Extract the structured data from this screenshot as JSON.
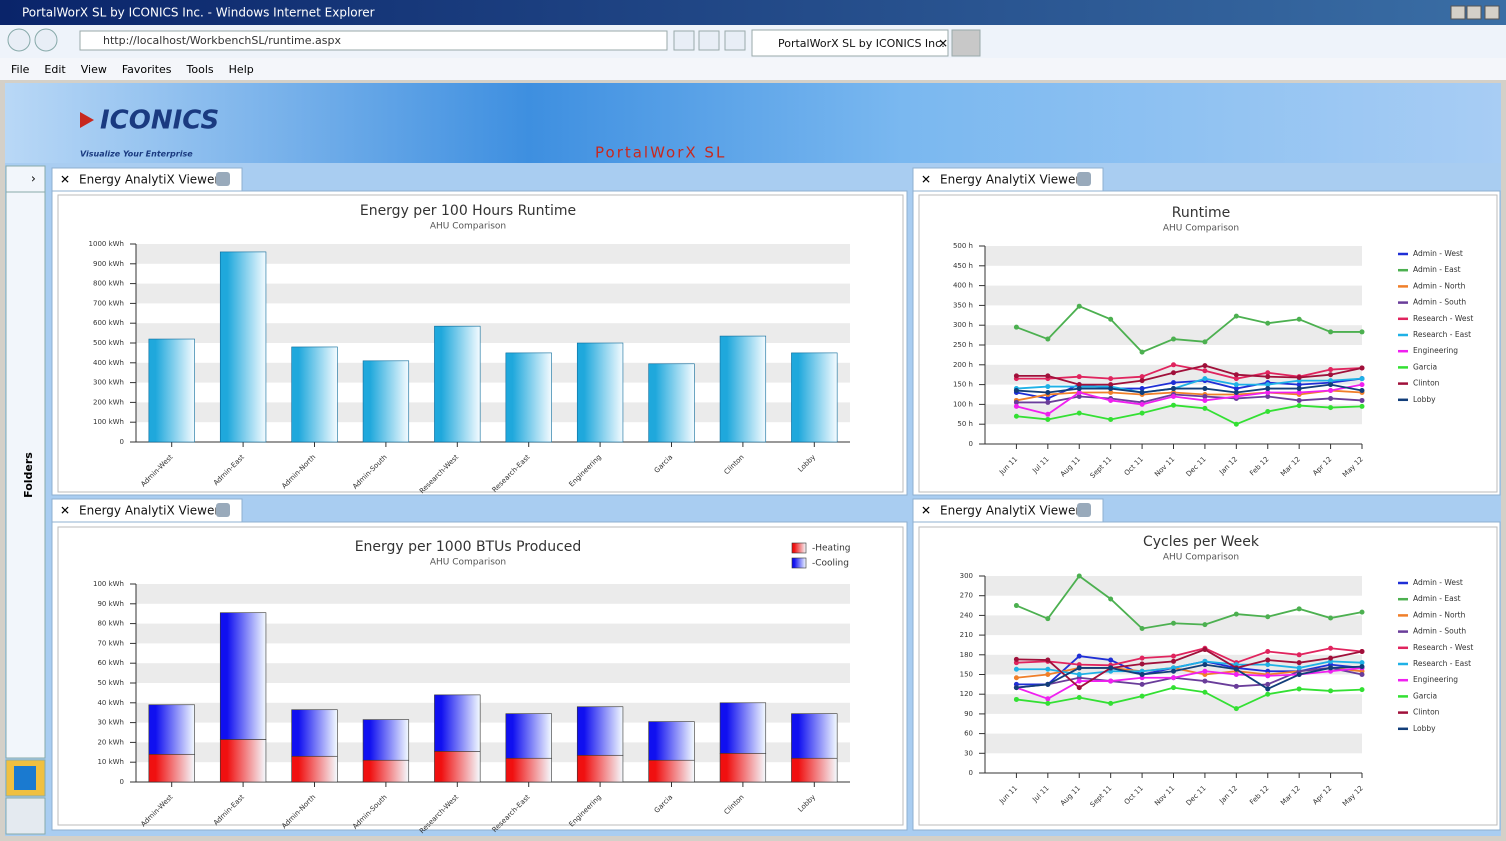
{
  "window": {
    "title": "PortalWorX SL by ICONICS Inc. - Windows Internet Explorer",
    "url": "http://localhost/WorkbenchSL/runtime.aspx",
    "tab": "PortalWorX SL by ICONICS Inc.",
    "menu": [
      "File",
      "Edit",
      "View",
      "Favorites",
      "Tools",
      "Help"
    ]
  },
  "banner": {
    "logo": "ICONICS",
    "tagline": "Visualize Your Enterprise",
    "product": "PortalWorX SL"
  },
  "sidebar": {
    "label": "Folders"
  },
  "panels": [
    "Energy AnalytiX Viewer",
    "Energy AnalytiX Viewer",
    "Energy AnalytiX Viewer",
    "Energy AnalytiX Viewer"
  ],
  "chart_data": [
    {
      "type": "bar",
      "title": "Energy per 100 Hours Runtime",
      "subtitle": "AHU Comparison",
      "categories": [
        "Admin-West",
        "Admin-East",
        "Admin-North",
        "Admin-South",
        "Research-West",
        "Research-East",
        "Engineering",
        "Garcia",
        "Clinton",
        "Lobby"
      ],
      "values": [
        520,
        960,
        480,
        410,
        585,
        450,
        500,
        395,
        535,
        450
      ],
      "color": "#1fa8dc",
      "ylim": [
        0,
        1000
      ],
      "grid": "bands",
      "yticks": [
        0,
        {
          "value": 100,
          "label": "100 kWh"
        },
        {
          "value": 200,
          "label": "200 kWh"
        },
        {
          "value": 300,
          "label": "300 kWh"
        },
        {
          "value": 400,
          "label": "400 kWh"
        },
        {
          "value": 500,
          "label": "500 kWh"
        },
        {
          "value": 600,
          "label": "600 kWh"
        },
        {
          "value": 700,
          "label": "700 kWh"
        },
        {
          "value": 800,
          "label": "800 kWh"
        },
        {
          "value": 900,
          "label": "900 kWh"
        },
        {
          "value": 1000,
          "label": "1000 kWh"
        }
      ]
    },
    {
      "type": "line",
      "title": "Runtime",
      "subtitle": "AHU Comparison",
      "categories": [
        "Jun 11",
        "Jul 11",
        "Aug 11",
        "Sept 11",
        "Oct 11",
        "Nov 11",
        "Dec 11",
        "Jan 12",
        "Feb 12",
        "Mar 12",
        "Apr 12",
        "May 12"
      ],
      "ylim": [
        0,
        500
      ],
      "grid": "bands",
      "legend": "right",
      "yticks": [
        0,
        {
          "value": 50,
          "label": "50 h"
        },
        {
          "value": 100,
          "label": "100 h"
        },
        {
          "value": 150,
          "label": "150 h"
        },
        {
          "value": 200,
          "label": "200 h"
        },
        {
          "value": 250,
          "label": "250 h"
        },
        {
          "value": 300,
          "label": "300 h"
        },
        {
          "value": 350,
          "label": "350 h"
        },
        {
          "value": 400,
          "label": "400 h"
        },
        {
          "value": 450,
          "label": "450 h"
        },
        {
          "value": 500,
          "label": "500 h"
        }
      ],
      "series": [
        {
          "name": "Admin - West",
          "color": "#1f2fd6",
          "values": [
            130,
            115,
            150,
            140,
            140,
            155,
            160,
            140,
            155,
            150,
            155,
            165
          ]
        },
        {
          "name": "Admin - East",
          "color": "#4cb050",
          "values": [
            295,
            265,
            348,
            315,
            232,
            265,
            258,
            323,
            305,
            315,
            283,
            283
          ]
        },
        {
          "name": "Admin - North",
          "color": "#f07f2a",
          "values": [
            110,
            125,
            130,
            130,
            125,
            130,
            125,
            125,
            130,
            125,
            135,
            130
          ]
        },
        {
          "name": "Admin - South",
          "color": "#6a3d9a",
          "values": [
            105,
            105,
            120,
            115,
            105,
            125,
            120,
            115,
            120,
            110,
            115,
            110
          ]
        },
        {
          "name": "Research - West",
          "color": "#e0245e",
          "values": [
            165,
            165,
            170,
            165,
            170,
            200,
            185,
            165,
            180,
            170,
            188,
            192
          ]
        },
        {
          "name": "Research - East",
          "color": "#1fb1e6",
          "values": [
            140,
            145,
            145,
            145,
            130,
            140,
            165,
            150,
            150,
            160,
            160,
            165
          ]
        },
        {
          "name": "Engineering",
          "color": "#f020f0",
          "values": [
            95,
            75,
            130,
            110,
            100,
            120,
            110,
            120,
            130,
            130,
            135,
            150
          ]
        },
        {
          "name": "Garcia",
          "color": "#33e033",
          "values": [
            70,
            62,
            78,
            62,
            78,
            98,
            90,
            50,
            82,
            97,
            92,
            95
          ]
        },
        {
          "name": "Clinton",
          "color": "#a0103a",
          "values": [
            172,
            172,
            150,
            150,
            160,
            180,
            198,
            175,
            170,
            168,
            175,
            192
          ]
        },
        {
          "name": "Lobby",
          "color": "#123e7a",
          "values": [
            135,
            130,
            140,
            140,
            130,
            140,
            140,
            130,
            140,
            140,
            150,
            135
          ]
        }
      ]
    },
    {
      "type": "stacked_bar",
      "title": "Energy per 1000 BTUs Produced",
      "subtitle": "AHU Comparison",
      "categories": [
        "Admin-West",
        "Admin-East",
        "Admin-North",
        "Admin-South",
        "Research-West",
        "Research-East",
        "Engineering",
        "Garcia",
        "Clinton",
        "Lobby"
      ],
      "ylim": [
        0,
        100
      ],
      "grid": "bands",
      "legend": "top-right",
      "yticks": [
        0,
        {
          "value": 10,
          "label": "10 kWh"
        },
        {
          "value": 20,
          "label": "20 kWh"
        },
        {
          "value": 30,
          "label": "30 kWh"
        },
        {
          "value": 40,
          "label": "40 kWh"
        },
        {
          "value": 50,
          "label": "50 kWh"
        },
        {
          "value": 60,
          "label": "60 kWh"
        },
        {
          "value": 70,
          "label": "70 kWh"
        },
        {
          "value": 80,
          "label": "80 kWh"
        },
        {
          "value": 90,
          "label": "90 kWh"
        },
        {
          "value": 100,
          "label": "100 kWh"
        }
      ],
      "series": [
        {
          "name": "-Heating",
          "color": "#f01010",
          "values": [
            14,
            21.5,
            13,
            11,
            15.5,
            12,
            13.5,
            11,
            14.5,
            12
          ]
        },
        {
          "name": "-Cooling",
          "color": "#1010f0",
          "values": [
            25,
            64,
            23.5,
            20.5,
            28.5,
            22.5,
            24.5,
            19.5,
            25.5,
            22.5
          ]
        }
      ]
    },
    {
      "type": "line",
      "title": "Cycles per Week",
      "subtitle": "AHU Comparison",
      "categories": [
        "Jun 11",
        "Jul 11",
        "Aug 11",
        "Sept 11",
        "Oct 11",
        "Nov 11",
        "Dec 11",
        "Jan 12",
        "Feb 12",
        "Mar 12",
        "Apr 12",
        "May 12"
      ],
      "ylim": [
        0,
        300
      ],
      "grid": "bands",
      "legend": "right",
      "yticks": [
        0,
        30,
        60,
        90,
        120,
        150,
        180,
        210,
        240,
        270,
        300
      ],
      "series": [
        {
          "name": "Admin - West",
          "color": "#1f2fd6",
          "values": [
            135,
            135,
            178,
            172,
            150,
            160,
            170,
            160,
            155,
            155,
            165,
            160
          ]
        },
        {
          "name": "Admin - East",
          "color": "#4cb050",
          "values": [
            255,
            235,
            300,
            265,
            220,
            228,
            226,
            242,
            238,
            250,
            236,
            245
          ]
        },
        {
          "name": "Admin - North",
          "color": "#f07f2a",
          "values": [
            145,
            150,
            160,
            160,
            155,
            160,
            150,
            155,
            150,
            155,
            160,
            155
          ]
        },
        {
          "name": "Admin - South",
          "color": "#6a3d9a",
          "values": [
            130,
            135,
            145,
            140,
            135,
            145,
            140,
            132,
            135,
            155,
            160,
            150
          ]
        },
        {
          "name": "Research - West",
          "color": "#e0245e",
          "values": [
            168,
            170,
            165,
            164,
            175,
            178,
            190,
            168,
            185,
            180,
            190,
            185
          ]
        },
        {
          "name": "Research - East",
          "color": "#1fb1e6",
          "values": [
            158,
            158,
            150,
            155,
            155,
            160,
            170,
            165,
            165,
            160,
            170,
            168
          ]
        },
        {
          "name": "Engineering",
          "color": "#f020f0",
          "values": [
            130,
            113,
            140,
            140,
            145,
            145,
            155,
            150,
            148,
            150,
            155,
            160
          ]
        },
        {
          "name": "Garcia",
          "color": "#33e033",
          "values": [
            112,
            106,
            115,
            106,
            117,
            130,
            123,
            98,
            120,
            128,
            125,
            127
          ]
        },
        {
          "name": "Clinton",
          "color": "#a0103a",
          "values": [
            173,
            172,
            130,
            160,
            166,
            170,
            188,
            160,
            172,
            168,
            175,
            185
          ]
        },
        {
          "name": "Lobby",
          "color": "#123e7a",
          "values": [
            130,
            135,
            160,
            160,
            150,
            155,
            165,
            158,
            128,
            150,
            160,
            162
          ]
        }
      ]
    }
  ]
}
